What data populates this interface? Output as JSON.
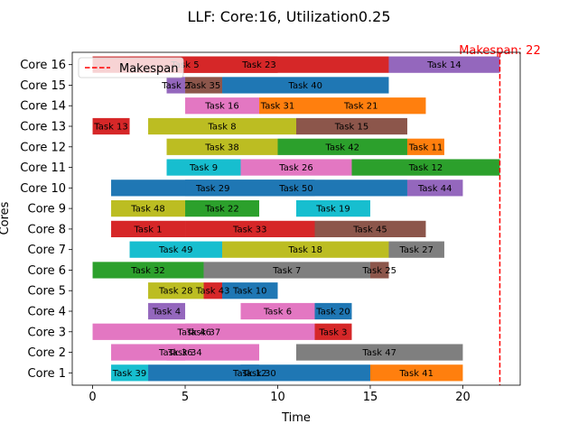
{
  "chart_data": {
    "type": "gantt",
    "title": "LLF: Core:16, Utilization0.25",
    "xlabel": "Time",
    "ylabel": "Cores",
    "xlim": [
      -1.1,
      23.1
    ],
    "x_ticks": [
      0,
      5,
      10,
      15,
      20
    ],
    "grid": false,
    "legend": {
      "placement": "top-left",
      "entries": [
        "Makespan"
      ]
    },
    "makespan": {
      "value": 22,
      "label": "Makespan: 22",
      "color": "#ff0000"
    },
    "categories": [
      "Core 1",
      "Core 2",
      "Core 3",
      "Core 4",
      "Core 5",
      "Core 6",
      "Core 7",
      "Core 8",
      "Core 9",
      "Core 10",
      "Core 11",
      "Core 12",
      "Core 13",
      "Core 14",
      "Core 15",
      "Core 16"
    ],
    "palette": [
      "#1f77b4",
      "#ff7f0e",
      "#2ca02c",
      "#d62728",
      "#9467bd",
      "#8c564b",
      "#e377c2",
      "#7f7f7f",
      "#bcbd22",
      "#17becf"
    ],
    "tasks": [
      {
        "core": 1,
        "label": "Task 39",
        "start": 1,
        "end": 3,
        "color": "#17becf"
      },
      {
        "core": 1,
        "label": "Task 30",
        "start": 3,
        "end": 15,
        "color": "#1f77b4"
      },
      {
        "core": 1,
        "label": "Task 12",
        "start": 8,
        "end": 9,
        "color": "#1f77b4"
      },
      {
        "core": 1,
        "label": "Task 41",
        "start": 15,
        "end": 20,
        "color": "#ff7f0e"
      },
      {
        "core": 2,
        "label": "Task 34",
        "start": 1,
        "end": 9,
        "color": "#e377c2"
      },
      {
        "core": 2,
        "label": "Task 36",
        "start": 4,
        "end": 5,
        "color": "#e377c2"
      },
      {
        "core": 2,
        "label": "Task 47",
        "start": 11,
        "end": 20,
        "color": "#7f7f7f"
      },
      {
        "core": 3,
        "label": "Task 37",
        "start": 0,
        "end": 12,
        "color": "#e377c2"
      },
      {
        "core": 3,
        "label": "Task 46",
        "start": 5,
        "end": 6,
        "color": "#e377c2"
      },
      {
        "core": 3,
        "label": "Task 3",
        "start": 12,
        "end": 14,
        "color": "#d62728"
      },
      {
        "core": 4,
        "label": "Task 4",
        "start": 3,
        "end": 5,
        "color": "#9467bd"
      },
      {
        "core": 4,
        "label": "Task 6",
        "start": 8,
        "end": 12,
        "color": "#e377c2"
      },
      {
        "core": 4,
        "label": "Task 20",
        "start": 12,
        "end": 14,
        "color": "#1f77b4"
      },
      {
        "core": 5,
        "label": "Task 28",
        "start": 3,
        "end": 6,
        "color": "#bcbd22"
      },
      {
        "core": 5,
        "label": "Task 43",
        "start": 6,
        "end": 7,
        "color": "#d62728"
      },
      {
        "core": 5,
        "label": "Task 10",
        "start": 7,
        "end": 10,
        "color": "#1f77b4"
      },
      {
        "core": 6,
        "label": "Task 32",
        "start": 0,
        "end": 6,
        "color": "#2ca02c"
      },
      {
        "core": 6,
        "label": "Task 7",
        "start": 6,
        "end": 15,
        "color": "#7f7f7f"
      },
      {
        "core": 6,
        "label": "Task 25",
        "start": 15,
        "end": 16,
        "color": "#8c564b"
      },
      {
        "core": 7,
        "label": "Task 49",
        "start": 2,
        "end": 7,
        "color": "#17becf"
      },
      {
        "core": 7,
        "label": "Task 18",
        "start": 7,
        "end": 16,
        "color": "#bcbd22"
      },
      {
        "core": 7,
        "label": "Task 27",
        "start": 16,
        "end": 19,
        "color": "#7f7f7f"
      },
      {
        "core": 8,
        "label": "Task 1",
        "start": 1,
        "end": 5,
        "color": "#d62728"
      },
      {
        "core": 8,
        "label": "Task 33",
        "start": 5,
        "end": 12,
        "color": "#d62728"
      },
      {
        "core": 8,
        "label": "Task 45",
        "start": 12,
        "end": 18,
        "color": "#8c564b"
      },
      {
        "core": 9,
        "label": "Task 48",
        "start": 1,
        "end": 5,
        "color": "#bcbd22"
      },
      {
        "core": 9,
        "label": "Task 22",
        "start": 5,
        "end": 9,
        "color": "#2ca02c"
      },
      {
        "core": 9,
        "label": "Task 19",
        "start": 11,
        "end": 15,
        "color": "#17becf"
      },
      {
        "core": 10,
        "label": "Task 29",
        "start": 1,
        "end": 12,
        "color": "#1f77b4"
      },
      {
        "core": 10,
        "label": "Task 50",
        "start": 5,
        "end": 17,
        "color": "#1f77b4"
      },
      {
        "core": 10,
        "label": "Task 44",
        "start": 17,
        "end": 20,
        "color": "#9467bd"
      },
      {
        "core": 11,
        "label": "Task 9",
        "start": 4,
        "end": 8,
        "color": "#17becf"
      },
      {
        "core": 11,
        "label": "Task 26",
        "start": 8,
        "end": 14,
        "color": "#e377c2"
      },
      {
        "core": 11,
        "label": "Task 12",
        "start": 14,
        "end": 22,
        "color": "#2ca02c"
      },
      {
        "core": 12,
        "label": "Task 38",
        "start": 4,
        "end": 10,
        "color": "#bcbd22"
      },
      {
        "core": 12,
        "label": "Task 42",
        "start": 10,
        "end": 17,
        "color": "#2ca02c"
      },
      {
        "core": 12,
        "label": "Task 11",
        "start": 17,
        "end": 19,
        "color": "#ff7f0e"
      },
      {
        "core": 13,
        "label": "Task 13",
        "start": 0,
        "end": 2,
        "color": "#d62728"
      },
      {
        "core": 13,
        "label": "Task 8",
        "start": 3,
        "end": 11,
        "color": "#bcbd22"
      },
      {
        "core": 13,
        "label": "Task 15",
        "start": 11,
        "end": 17,
        "color": "#8c564b"
      },
      {
        "core": 14,
        "label": "Task 16",
        "start": 5,
        "end": 9,
        "color": "#e377c2"
      },
      {
        "core": 14,
        "label": "Task 31",
        "start": 9,
        "end": 11,
        "color": "#ff7f0e"
      },
      {
        "core": 14,
        "label": "Task 21",
        "start": 11,
        "end": 18,
        "color": "#ff7f0e"
      },
      {
        "core": 15,
        "label": "Task 2",
        "start": 4,
        "end": 5,
        "color": "#9467bd"
      },
      {
        "core": 15,
        "label": "Task 35",
        "start": 5,
        "end": 7,
        "color": "#8c564b"
      },
      {
        "core": 15,
        "label": "Task 40",
        "start": 7,
        "end": 16,
        "color": "#1f77b4"
      },
      {
        "core": 16,
        "label": "Task 5",
        "start": 0,
        "end": 10,
        "color": "#d62728"
      },
      {
        "core": 16,
        "label": "Task 23",
        "start": 2,
        "end": 16,
        "color": "#d62728"
      },
      {
        "core": 16,
        "label": "Task 14",
        "start": 16,
        "end": 22,
        "color": "#9467bd"
      }
    ]
  }
}
